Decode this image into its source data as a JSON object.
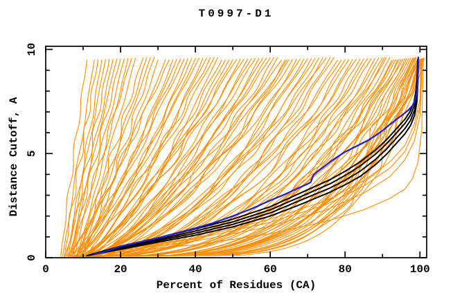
{
  "chart_data": {
    "type": "line",
    "title": "T0997-D1",
    "xlabel": "Percent of Residues (CA)",
    "ylabel": "Distance Cutoff, A",
    "xlim": [
      0,
      101.8
    ],
    "ylim": [
      0,
      10.15
    ],
    "xticks": [
      0,
      20,
      40,
      60,
      80,
      100
    ],
    "xminor_step": 10,
    "yticks": [
      0,
      5,
      10
    ],
    "yminor_step": 1,
    "grid": false,
    "legend": "none",
    "curve_top_cutoff": 9.55,
    "colors": {
      "orange_models": "#ff8c00",
      "black_models": "#000000",
      "blue_model": "#2222cc",
      "frame": "#000000",
      "text": "#000000",
      "background": "#ffffff"
    },
    "series_named": [
      {
        "name": "blue-model",
        "color": "blue_model",
        "width": 2.3,
        "points": [
          [
            12.8,
            0.15
          ],
          [
            16,
            0.3
          ],
          [
            20,
            0.55
          ],
          [
            25,
            0.75
          ],
          [
            30,
            0.95
          ],
          [
            35,
            1.18
          ],
          [
            40,
            1.42
          ],
          [
            45,
            1.68
          ],
          [
            50,
            2.0
          ],
          [
            55,
            2.35
          ],
          [
            60,
            2.75
          ],
          [
            64,
            3.05
          ],
          [
            67,
            3.3
          ],
          [
            69.5,
            3.5
          ],
          [
            70.8,
            3.62
          ],
          [
            71.5,
            3.95
          ],
          [
            72.5,
            4.12
          ],
          [
            74,
            4.32
          ],
          [
            76,
            4.6
          ],
          [
            78,
            4.85
          ],
          [
            80,
            5.08
          ],
          [
            83,
            5.35
          ],
          [
            86,
            5.62
          ],
          [
            88,
            5.85
          ],
          [
            90,
            6.1
          ],
          [
            92,
            6.4
          ],
          [
            94,
            6.68
          ],
          [
            95.5,
            6.88
          ],
          [
            97,
            7.1
          ],
          [
            98,
            7.3
          ],
          [
            98.7,
            7.55
          ],
          [
            99.15,
            7.9
          ],
          [
            99.4,
            8.4
          ],
          [
            99.5,
            9.0
          ],
          [
            99.55,
            9.62
          ]
        ]
      },
      {
        "name": "black-model-1",
        "color": "black_models",
        "width": 2.0,
        "points": [
          [
            11,
            0.1
          ],
          [
            20,
            0.4
          ],
          [
            30,
            0.75
          ],
          [
            40,
            1.08
          ],
          [
            50,
            1.48
          ],
          [
            60,
            2.0
          ],
          [
            68,
            2.55
          ],
          [
            76,
            3.15
          ],
          [
            80,
            3.5
          ],
          [
            84,
            3.9
          ],
          [
            88,
            4.45
          ],
          [
            91,
            4.95
          ],
          [
            94,
            5.55
          ],
          [
            96,
            5.95
          ],
          [
            97.5,
            6.35
          ],
          [
            98.6,
            6.85
          ],
          [
            99.2,
            7.5
          ],
          [
            99.45,
            8.4
          ],
          [
            99.55,
            9.5
          ]
        ]
      },
      {
        "name": "black-model-2",
        "color": "black_models",
        "width": 2.0,
        "points": [
          [
            11.5,
            0.12
          ],
          [
            20,
            0.45
          ],
          [
            30,
            0.82
          ],
          [
            40,
            1.18
          ],
          [
            50,
            1.6
          ],
          [
            60,
            2.15
          ],
          [
            68,
            2.75
          ],
          [
            76,
            3.35
          ],
          [
            80,
            3.72
          ],
          [
            84,
            4.15
          ],
          [
            88,
            4.7
          ],
          [
            91,
            5.2
          ],
          [
            94,
            5.8
          ],
          [
            96,
            6.2
          ],
          [
            97.5,
            6.6
          ],
          [
            98.6,
            7.1
          ],
          [
            99.2,
            7.75
          ],
          [
            99.45,
            8.6
          ],
          [
            99.55,
            9.55
          ]
        ]
      },
      {
        "name": "black-model-3",
        "color": "black_models",
        "width": 2.0,
        "points": [
          [
            12,
            0.15
          ],
          [
            20,
            0.5
          ],
          [
            30,
            0.88
          ],
          [
            40,
            1.28
          ],
          [
            50,
            1.72
          ],
          [
            60,
            2.3
          ],
          [
            68,
            2.92
          ],
          [
            76,
            3.55
          ],
          [
            80,
            3.95
          ],
          [
            84,
            4.4
          ],
          [
            88,
            4.95
          ],
          [
            91,
            5.45
          ],
          [
            94,
            6.05
          ],
          [
            96,
            6.45
          ],
          [
            97.5,
            6.85
          ],
          [
            98.5,
            7.3
          ],
          [
            99.1,
            7.95
          ],
          [
            99.35,
            8.75
          ],
          [
            99.45,
            9.5
          ]
        ]
      },
      {
        "name": "black-model-4",
        "color": "black_models",
        "width": 2.0,
        "points": [
          [
            12.5,
            0.18
          ],
          [
            20,
            0.55
          ],
          [
            30,
            0.95
          ],
          [
            40,
            1.38
          ],
          [
            50,
            1.85
          ],
          [
            60,
            2.45
          ],
          [
            68,
            3.1
          ],
          [
            76,
            3.75
          ],
          [
            80,
            4.15
          ],
          [
            84,
            4.6
          ],
          [
            88,
            5.15
          ],
          [
            91,
            5.65
          ],
          [
            94,
            6.25
          ],
          [
            96,
            6.65
          ],
          [
            97.3,
            7.0
          ],
          [
            98.4,
            7.45
          ],
          [
            99,
            8.1
          ],
          [
            99.3,
            8.9
          ],
          [
            99.4,
            9.52
          ]
        ]
      },
      {
        "name": "orange-envelope-1",
        "color": "orange_models",
        "width": 1.1,
        "points": [
          [
            12,
            0.12
          ],
          [
            20,
            0.35
          ],
          [
            40,
            0.8
          ],
          [
            60,
            1.5
          ],
          [
            75,
            2.3
          ],
          [
            85,
            3.1
          ],
          [
            92,
            3.9
          ],
          [
            96,
            4.7
          ],
          [
            98.5,
            5.6
          ],
          [
            100,
            6.8
          ],
          [
            100.4,
            9.5
          ]
        ]
      },
      {
        "name": "orange-envelope-2",
        "color": "orange_models",
        "width": 1.1,
        "points": [
          [
            13,
            0.15
          ],
          [
            20,
            0.4
          ],
          [
            40,
            0.9
          ],
          [
            60,
            1.7
          ],
          [
            75,
            2.55
          ],
          [
            85,
            3.45
          ],
          [
            92,
            4.3
          ],
          [
            96,
            5.1
          ],
          [
            98.5,
            6.1
          ],
          [
            100.2,
            7.4
          ],
          [
            100.6,
            9.5
          ]
        ]
      },
      {
        "name": "orange-envelope-3",
        "color": "orange_models",
        "width": 1.1,
        "points": [
          [
            11,
            0.1
          ],
          [
            20,
            0.28
          ],
          [
            40,
            0.62
          ],
          [
            60,
            1.15
          ],
          [
            75,
            1.75
          ],
          [
            85,
            2.3
          ],
          [
            92,
            2.85
          ],
          [
            96,
            3.3
          ],
          [
            98,
            3.8
          ],
          [
            99.5,
            4.6
          ],
          [
            100.5,
            6.2
          ],
          [
            100.9,
            9.45
          ]
        ]
      },
      {
        "name": "orange-envelope-4",
        "color": "orange_models",
        "width": 1.1,
        "points": [
          [
            12.5,
            0.14
          ],
          [
            20,
            0.42
          ],
          [
            40,
            0.95
          ],
          [
            60,
            1.85
          ],
          [
            75,
            2.75
          ],
          [
            85,
            3.7
          ],
          [
            92,
            4.6
          ],
          [
            96,
            5.4
          ],
          [
            98.5,
            6.4
          ],
          [
            100,
            7.6
          ],
          [
            100.3,
            9.5
          ]
        ]
      }
    ],
    "orange_family": {
      "color": "orange_models",
      "width": 1.1,
      "note": "each entry: [start_percent_at_zero_cutoff, percent_at_top_cutoff, shape_exponent]",
      "curves": [
        [
          4,
          11,
          1.05
        ],
        [
          4.5,
          13,
          1
        ],
        [
          5,
          14,
          1.1
        ],
        [
          5.5,
          15,
          0.95
        ],
        [
          6,
          16,
          1.05
        ],
        [
          5,
          17,
          0.9
        ],
        [
          6.5,
          18,
          1
        ],
        [
          7,
          19,
          1.1
        ],
        [
          6,
          20,
          0.95
        ],
        [
          7.5,
          21,
          1
        ],
        [
          8,
          22,
          0.9
        ],
        [
          7,
          23,
          1.05
        ],
        [
          8.5,
          24,
          0.95
        ],
        [
          9,
          26,
          1
        ],
        [
          8,
          27,
          0.9
        ],
        [
          9.5,
          28,
          1
        ],
        [
          10,
          29,
          0.95
        ],
        [
          9,
          30,
          0.85
        ],
        [
          5,
          32,
          0.8
        ],
        [
          6,
          33,
          0.9
        ],
        [
          7,
          34,
          0.75
        ],
        [
          8,
          35,
          0.85
        ],
        [
          6,
          36,
          0.8
        ],
        [
          9,
          37,
          0.9
        ],
        [
          7,
          38,
          0.7
        ],
        [
          10,
          39,
          0.85
        ],
        [
          8,
          40,
          0.75
        ],
        [
          6,
          41,
          0.8
        ],
        [
          9,
          42,
          0.7
        ],
        [
          11,
          43,
          0.85
        ],
        [
          7,
          44,
          0.75
        ],
        [
          10,
          45,
          0.8
        ],
        [
          8,
          46,
          0.65
        ],
        [
          12,
          47,
          0.8
        ],
        [
          9,
          48,
          0.7
        ],
        [
          11,
          49,
          0.75
        ],
        [
          7,
          50,
          0.65
        ],
        [
          10,
          51,
          0.8
        ],
        [
          12,
          52,
          0.7
        ],
        [
          8,
          53,
          0.75
        ],
        [
          11,
          54,
          0.65
        ],
        [
          9,
          55,
          0.7
        ],
        [
          13,
          56,
          0.75
        ],
        [
          10,
          57,
          0.6
        ],
        [
          12,
          58,
          0.7
        ],
        [
          8,
          59,
          0.65
        ],
        [
          11,
          60,
          0.7
        ],
        [
          9,
          61,
          0.6
        ],
        [
          13,
          62,
          0.65
        ],
        [
          10,
          63,
          0.7
        ],
        [
          12,
          64,
          0.6
        ],
        [
          11,
          64.5,
          0.68
        ],
        [
          6,
          65,
          0.55
        ],
        [
          9,
          66,
          0.6
        ],
        [
          12,
          67,
          0.5
        ],
        [
          7,
          68,
          0.58
        ],
        [
          10,
          69,
          0.52
        ],
        [
          13,
          70,
          0.6
        ],
        [
          8,
          71,
          0.48
        ],
        [
          11,
          72,
          0.55
        ],
        [
          9,
          73,
          0.5
        ],
        [
          12,
          74,
          0.45
        ],
        [
          7,
          75,
          0.55
        ],
        [
          10,
          76,
          0.48
        ],
        [
          13,
          77,
          0.52
        ],
        [
          8,
          78,
          0.45
        ],
        [
          11,
          79,
          0.5
        ],
        [
          9,
          80,
          0.42
        ],
        [
          12,
          81,
          0.48
        ],
        [
          10,
          82,
          0.4
        ],
        [
          7,
          83,
          0.45
        ],
        [
          13,
          84,
          0.42
        ],
        [
          8,
          85,
          0.38
        ],
        [
          11,
          86,
          0.45
        ],
        [
          9,
          87,
          0.4
        ],
        [
          12,
          88,
          0.36
        ],
        [
          10,
          89,
          0.42
        ],
        [
          8,
          90,
          0.38
        ],
        [
          13,
          90.5,
          0.35
        ],
        [
          9,
          91,
          0.4
        ],
        [
          11,
          92,
          0.36
        ],
        [
          10,
          92.5,
          0.33
        ],
        [
          12,
          93,
          0.38
        ],
        [
          8,
          93.5,
          0.35
        ],
        [
          11,
          94,
          0.3
        ],
        [
          9,
          94.5,
          0.36
        ],
        [
          13,
          95,
          0.32
        ],
        [
          10,
          95.5,
          0.35
        ],
        [
          12,
          96,
          0.3
        ],
        [
          9,
          96.5,
          0.33
        ],
        [
          10,
          97,
          0.28
        ],
        [
          12,
          97.5,
          0.3
        ],
        [
          11,
          98,
          0.26
        ],
        [
          13,
          98.2,
          0.3
        ],
        [
          10,
          98.5,
          0.25
        ],
        [
          12,
          98.8,
          0.28
        ],
        [
          11,
          99,
          0.24
        ],
        [
          13,
          99.2,
          0.27
        ],
        [
          10,
          99.4,
          0.25
        ],
        [
          12,
          99.6,
          0.23
        ],
        [
          11,
          99.8,
          0.26
        ],
        [
          13,
          100,
          0.22
        ],
        [
          10,
          100,
          0.25
        ],
        [
          12,
          100.2,
          0.21
        ],
        [
          11,
          100.4,
          0.24
        ],
        [
          13,
          100.5,
          0.2
        ],
        [
          12,
          100.6,
          0.22
        ],
        [
          11,
          100.8,
          0.19
        ],
        [
          12,
          101,
          0.21
        ],
        [
          13,
          101.2,
          0.18
        ]
      ]
    },
    "tick_label_strings": {
      "x": [
        "0",
        "20",
        "40",
        "60",
        "80",
        "100"
      ],
      "y": [
        "0",
        "5",
        "10"
      ]
    }
  }
}
